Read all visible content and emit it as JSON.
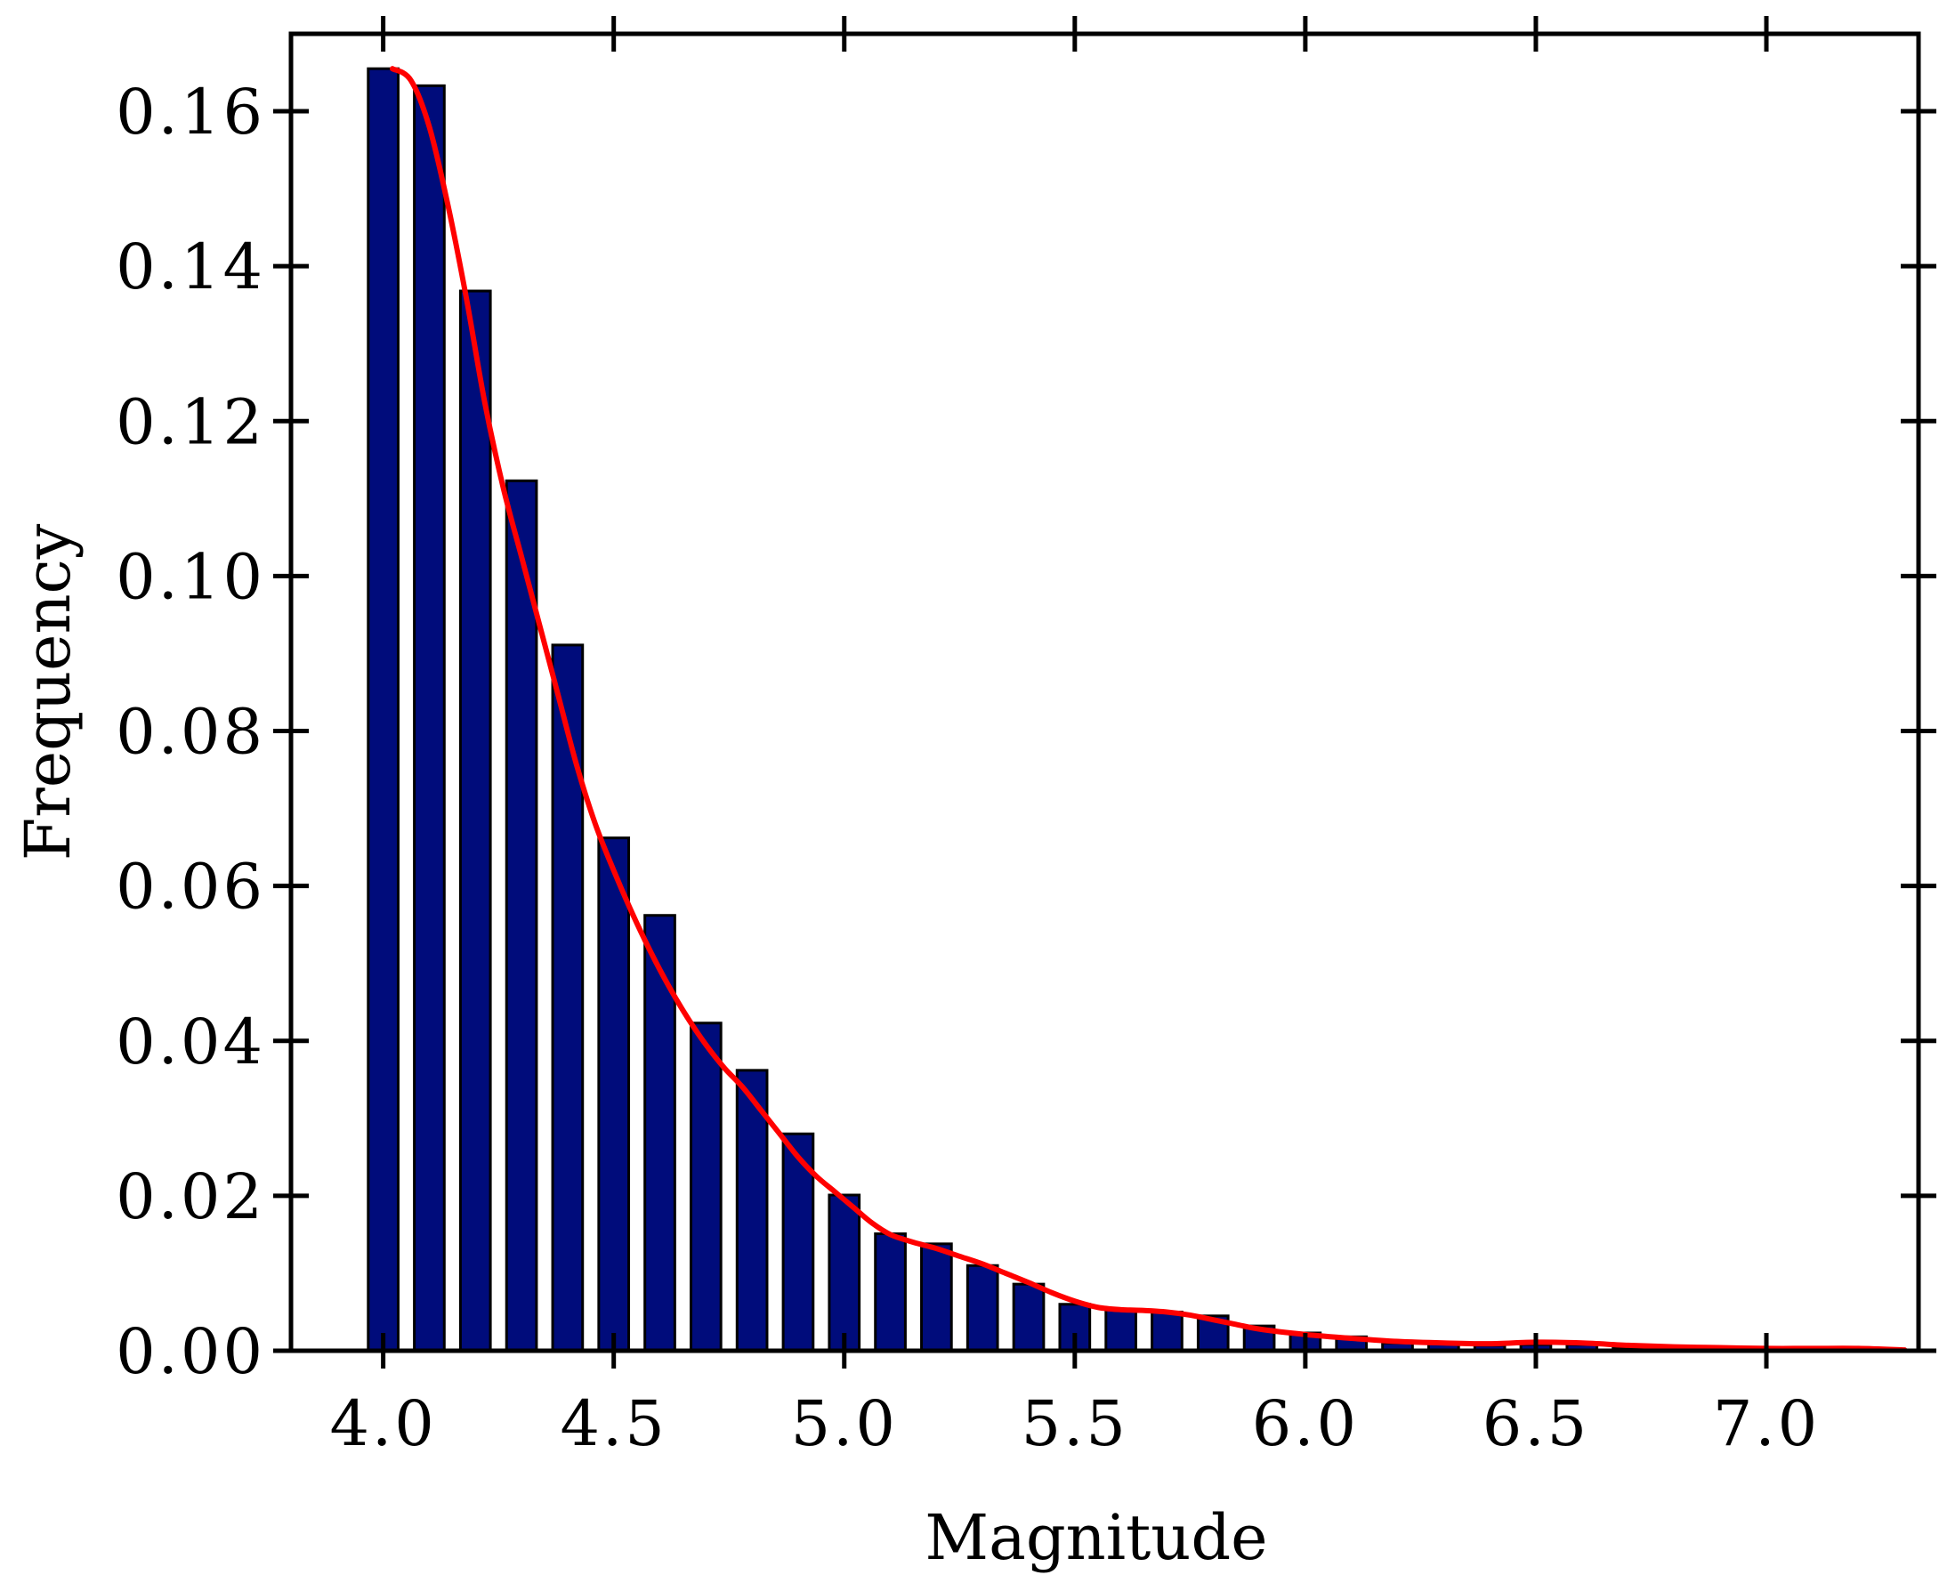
{
  "chart_data": {
    "type": "bar",
    "xlabel": "Magnitude",
    "ylabel": "Frequency",
    "xlim": [
      3.8,
      7.33
    ],
    "ylim": [
      0,
      0.17
    ],
    "xticks": [
      4.0,
      4.5,
      5.0,
      5.5,
      6.0,
      6.5,
      7.0
    ],
    "xtick_labels": [
      "4.0",
      "4.5",
      "5.0",
      "5.5",
      "6.0",
      "6.5",
      "7.0"
    ],
    "yticks": [
      0,
      0.02,
      0.04,
      0.06,
      0.08,
      0.1,
      0.12,
      0.14,
      0.16
    ],
    "ytick_labels": [
      "0.00",
      "0.02",
      "0.04",
      "0.06",
      "0.08",
      "0.10",
      "0.12",
      "0.14",
      "0.16"
    ],
    "bar_width": 0.065,
    "bars": {
      "x": [
        4.0,
        4.1,
        4.2,
        4.3,
        4.4,
        4.5,
        4.6,
        4.7,
        4.8,
        4.9,
        5.0,
        5.1,
        5.2,
        5.3,
        5.4,
        5.5,
        5.6,
        5.7,
        5.8,
        5.9,
        6.0,
        6.1,
        6.2,
        6.3,
        6.4,
        6.5,
        6.6,
        6.7,
        6.8,
        6.9,
        7.0,
        7.1,
        7.2
      ],
      "values": [
        0.1655,
        0.1633,
        0.1368,
        0.1123,
        0.0911,
        0.0662,
        0.0562,
        0.0423,
        0.0362,
        0.028,
        0.0201,
        0.0151,
        0.0138,
        0.011,
        0.0086,
        0.006,
        0.0053,
        0.005,
        0.0045,
        0.0032,
        0.0023,
        0.0018,
        0.001,
        0.0009,
        0.0007,
        0.0008,
        0.0008,
        0.0004,
        0.0003,
        0.0002,
        0.0003,
        0.0002,
        0.0002
      ]
    },
    "density_curve": {
      "x": [
        4.02,
        4.06,
        4.1,
        4.14,
        4.18,
        4.22,
        4.26,
        4.3,
        4.34,
        4.38,
        4.42,
        4.46,
        4.5,
        4.54,
        4.58,
        4.62,
        4.66,
        4.7,
        4.74,
        4.78,
        4.82,
        4.86,
        4.9,
        4.94,
        4.98,
        5.02,
        5.06,
        5.1,
        5.15,
        5.2,
        5.25,
        5.3,
        5.35,
        5.4,
        5.45,
        5.5,
        5.55,
        5.6,
        5.65,
        5.7,
        5.75,
        5.8,
        5.85,
        5.9,
        6.0,
        6.1,
        6.2,
        6.3,
        6.4,
        6.5,
        6.6,
        6.7,
        6.8,
        6.9,
        7.0,
        7.1,
        7.2,
        7.3
      ],
      "values": [
        0.1655,
        0.164,
        0.158,
        0.148,
        0.136,
        0.1225,
        0.1115,
        0.1025,
        0.0935,
        0.0845,
        0.0755,
        0.068,
        0.062,
        0.0565,
        0.0515,
        0.047,
        0.043,
        0.0395,
        0.0365,
        0.034,
        0.031,
        0.028,
        0.025,
        0.0225,
        0.0205,
        0.0185,
        0.0165,
        0.015,
        0.014,
        0.0132,
        0.0122,
        0.0112,
        0.01,
        0.0088,
        0.0075,
        0.0064,
        0.0056,
        0.0053,
        0.0052,
        0.005,
        0.0046,
        0.004,
        0.0034,
        0.0028,
        0.0021,
        0.0016,
        0.0012,
        0.001,
        0.0009,
        0.0011,
        0.001,
        0.0007,
        0.0005,
        0.0004,
        0.0003,
        0.0003,
        0.0003,
        0.0001
      ]
    },
    "colors": {
      "bar_fill": "#000c7b",
      "bar_stroke": "#000000",
      "curve": "#ff0000",
      "axes": "#000000"
    },
    "grid": false,
    "legend": "none"
  }
}
